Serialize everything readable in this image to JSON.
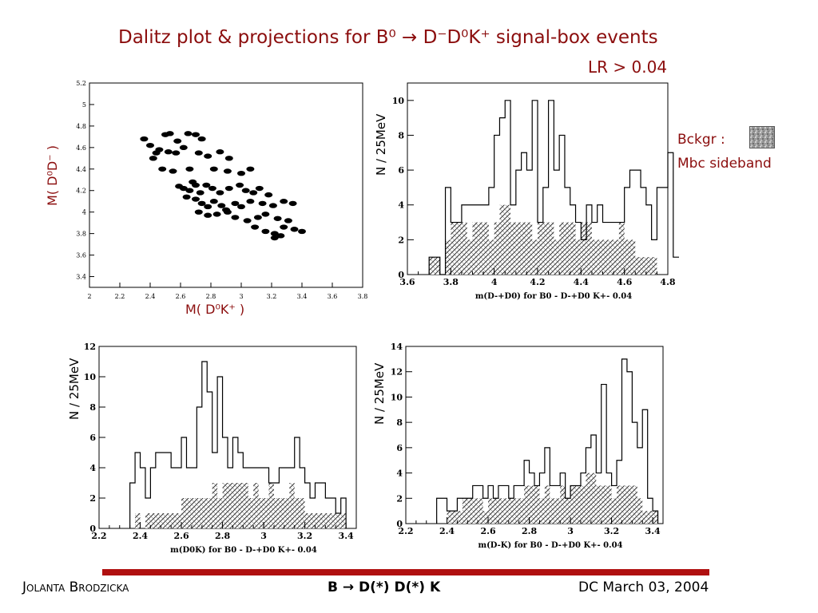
{
  "title": {
    "line1": "Dalitz plot & projections for B⁰ → D⁻D⁰K⁺ signal-box events",
    "line2": "LR > 0.04"
  },
  "legend": {
    "bckgr_label": "Bckgr :",
    "sideband_label": "Mbc sideband",
    "swatch_color": "#999999"
  },
  "footer": {
    "author": "Jolanta Brodzicka",
    "topic": "B → D(*) D(*) K",
    "date": "DC March 03, 2004",
    "bar_color": "#b01010"
  },
  "chart_data": [
    {
      "id": "dalitz",
      "type": "scatter",
      "xlabel": "M( D⁰K⁺ )",
      "ylabel": "M( D⁰D⁻ )",
      "xlim": [
        2,
        3.8
      ],
      "ylim": [
        3.3,
        5.2
      ],
      "xticks": [
        "2",
        "2.2",
        "2.4",
        "2.6",
        "2.8",
        "3",
        "3.2",
        "3.4",
        "3.6",
        "3.8"
      ],
      "yticks": [
        "3.4",
        "3.6",
        "3.8",
        "4",
        "4.2",
        "4.4",
        "4.6",
        "4.8",
        "5",
        "5.2"
      ],
      "points": [
        [
          2.36,
          4.68
        ],
        [
          2.4,
          4.62
        ],
        [
          2.46,
          4.58
        ],
        [
          2.5,
          4.72
        ],
        [
          2.53,
          4.73
        ],
        [
          2.58,
          4.66
        ],
        [
          2.65,
          4.73
        ],
        [
          2.7,
          4.72
        ],
        [
          2.74,
          4.68
        ],
        [
          2.44,
          4.55
        ],
        [
          2.42,
          4.5
        ],
        [
          2.52,
          4.56
        ],
        [
          2.57,
          4.55
        ],
        [
          2.62,
          4.6
        ],
        [
          2.72,
          4.55
        ],
        [
          2.78,
          4.52
        ],
        [
          2.86,
          4.56
        ],
        [
          2.92,
          4.5
        ],
        [
          2.48,
          4.4
        ],
        [
          2.55,
          4.38
        ],
        [
          2.66,
          4.4
        ],
        [
          2.82,
          4.4
        ],
        [
          2.91,
          4.38
        ],
        [
          3.0,
          4.36
        ],
        [
          3.06,
          4.4
        ],
        [
          2.59,
          4.24
        ],
        [
          2.62,
          4.22
        ],
        [
          2.66,
          4.2
        ],
        [
          2.7,
          4.25
        ],
        [
          2.73,
          4.18
        ],
        [
          2.68,
          4.28
        ],
        [
          2.77,
          4.25
        ],
        [
          2.81,
          4.22
        ],
        [
          2.86,
          4.18
        ],
        [
          2.92,
          4.22
        ],
        [
          2.99,
          4.25
        ],
        [
          3.03,
          4.2
        ],
        [
          3.08,
          4.18
        ],
        [
          3.12,
          4.22
        ],
        [
          3.18,
          4.16
        ],
        [
          2.64,
          4.14
        ],
        [
          2.7,
          4.12
        ],
        [
          2.74,
          4.08
        ],
        [
          2.78,
          4.05
        ],
        [
          2.82,
          4.1
        ],
        [
          2.87,
          4.06
        ],
        [
          2.9,
          4.02
        ],
        [
          2.96,
          4.08
        ],
        [
          3.0,
          4.05
        ],
        [
          3.06,
          4.1
        ],
        [
          3.14,
          4.08
        ],
        [
          3.21,
          4.06
        ],
        [
          3.28,
          4.1
        ],
        [
          3.34,
          4.08
        ],
        [
          2.72,
          4.0
        ],
        [
          2.78,
          3.97
        ],
        [
          2.84,
          3.98
        ],
        [
          2.91,
          4.0
        ],
        [
          2.96,
          3.95
        ],
        [
          3.04,
          3.92
        ],
        [
          3.11,
          3.95
        ],
        [
          3.16,
          3.98
        ],
        [
          3.24,
          3.94
        ],
        [
          3.31,
          3.92
        ],
        [
          3.09,
          3.86
        ],
        [
          3.16,
          3.82
        ],
        [
          3.22,
          3.8
        ],
        [
          3.28,
          3.86
        ],
        [
          3.35,
          3.84
        ],
        [
          3.4,
          3.82
        ],
        [
          3.22,
          3.76
        ],
        [
          3.26,
          3.78
        ]
      ]
    },
    {
      "id": "proj-d-d0",
      "type": "bar",
      "xlabel": "m(D-+D0) for B0 - D-+D0 K+- 0.04",
      "ylabel": "N / 25MeV",
      "xlim": [
        3.6,
        4.8
      ],
      "ylim": [
        0,
        11
      ],
      "xticks": [
        "3.6",
        "3.8",
        "4",
        "4.2",
        "4.4",
        "4.6",
        "4.8"
      ],
      "yticks": [
        "0",
        "2",
        "4",
        "6",
        "8",
        "10"
      ],
      "bin_start": 3.7,
      "bin_width": 0.025,
      "signal_box": [
        1,
        1,
        0,
        5,
        3,
        3,
        4,
        4,
        4,
        4,
        4,
        5,
        8,
        9,
        10,
        4,
        6,
        7,
        6,
        10,
        3,
        5,
        10,
        6,
        8,
        5,
        4,
        3,
        2,
        4,
        3,
        4,
        3,
        3,
        3,
        3,
        5,
        6,
        6,
        5,
        4,
        2,
        5,
        5,
        7,
        1,
        1,
        1
      ],
      "sideband": [
        1,
        1,
        0,
        2,
        3,
        3,
        3,
        2,
        3,
        3,
        3,
        2,
        3,
        4,
        4,
        3,
        3,
        3,
        3,
        2,
        3,
        3,
        3,
        2,
        3,
        3,
        3,
        2,
        3,
        3,
        2,
        2,
        2,
        2,
        2,
        3,
        2,
        2,
        1,
        1,
        1,
        1,
        0,
        0,
        0,
        0,
        0,
        0
      ]
    },
    {
      "id": "proj-d0-k",
      "type": "bar",
      "xlabel": "m(D0K) for B0 - D-+D0 K+- 0.04",
      "ylabel": "N / 25MeV",
      "xlim": [
        2.2,
        3.45
      ],
      "ylim": [
        0,
        12
      ],
      "xticks": [
        "2.2",
        "2.4",
        "2.6",
        "2.8",
        "3",
        "3.2",
        "3.4"
      ],
      "yticks": [
        "0",
        "2",
        "4",
        "6",
        "8",
        "10",
        "12"
      ],
      "bin_start": 2.35,
      "bin_width": 0.025,
      "signal_box": [
        3,
        5,
        4,
        2,
        4,
        5,
        5,
        5,
        4,
        4,
        6,
        4,
        4,
        8,
        11,
        9,
        5,
        10,
        6,
        4,
        6,
        5,
        4,
        4,
        4,
        4,
        4,
        3,
        3,
        4,
        4,
        4,
        6,
        4,
        3,
        2,
        3,
        3,
        2,
        2,
        1,
        2
      ],
      "sideband": [
        0,
        1,
        0,
        1,
        1,
        1,
        1,
        1,
        1,
        1,
        2,
        2,
        2,
        2,
        2,
        2,
        3,
        2,
        3,
        3,
        3,
        3,
        3,
        2,
        3,
        2,
        2,
        3,
        2,
        2,
        2,
        3,
        2,
        2,
        1,
        1,
        1,
        1,
        1,
        1,
        1,
        1
      ]
    },
    {
      "id": "proj-d-k",
      "type": "bar",
      "xlabel": "m(D-K) for B0 - D-+D0 K+- 0.04",
      "ylabel": "N / 25MeV",
      "xlim": [
        2.2,
        3.45
      ],
      "ylim": [
        0,
        14
      ],
      "xticks": [
        "2.2",
        "2.4",
        "2.6",
        "2.8",
        "3",
        "3.2",
        "3.4"
      ],
      "yticks": [
        "0",
        "2",
        "4",
        "6",
        "8",
        "10",
        "12",
        "14"
      ],
      "bin_start": 2.35,
      "bin_width": 0.025,
      "signal_box": [
        2,
        2,
        1,
        1,
        2,
        2,
        2,
        3,
        3,
        2,
        3,
        2,
        3,
        3,
        2,
        3,
        3,
        5,
        4,
        3,
        4,
        6,
        3,
        3,
        4,
        2,
        3,
        3,
        4,
        6,
        7,
        4,
        11,
        4,
        3,
        5,
        13,
        12,
        8,
        6,
        9,
        2,
        1
      ],
      "sideband": [
        0,
        0,
        1,
        1,
        1,
        2,
        2,
        2,
        2,
        1,
        2,
        2,
        2,
        2,
        2,
        2,
        2,
        3,
        3,
        3,
        2,
        3,
        2,
        2,
        3,
        2,
        3,
        3,
        3,
        4,
        4,
        3,
        3,
        3,
        2,
        3,
        3,
        3,
        3,
        2,
        1,
        1,
        1
      ]
    }
  ]
}
